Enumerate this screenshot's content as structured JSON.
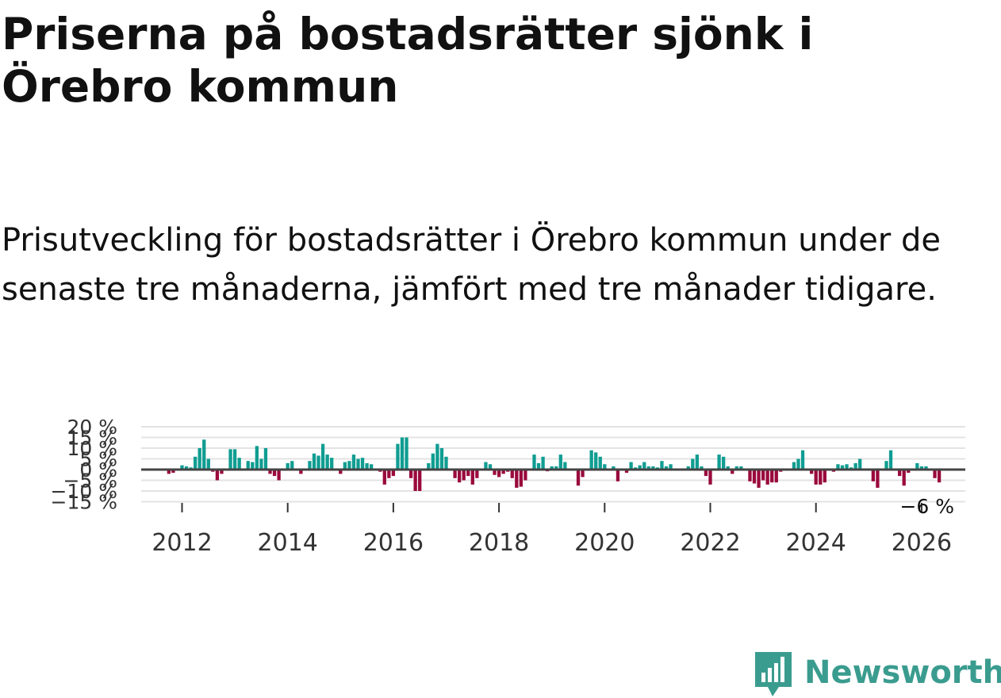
{
  "title": "Priserna på bostadsrätter sjönk i Örebro kommun",
  "subtitle": "Prisutveckling för bostadsrätter i Örebro kommun under de senaste tre månaderna, jämfört med tre månader tidigare.",
  "brand": {
    "name": "Newsworthy",
    "color": "#3a9c8f"
  },
  "colors": {
    "positive": "#109d92",
    "negative": "#9a0a3c",
    "grid": "#e3e3e3",
    "zero": "#444444"
  },
  "chart_data": {
    "type": "bar",
    "start": "2011-09",
    "frequency": "monthly",
    "unit": "%",
    "ylim": [
      -15,
      20
    ],
    "yticks": [
      {
        "v": 20,
        "label": "20 %"
      },
      {
        "v": 15,
        "label": "15 %"
      },
      {
        "v": 10,
        "label": "10 %"
      },
      {
        "v": 5,
        "label": "5 %"
      },
      {
        "v": 0,
        "label": "0 %"
      },
      {
        "v": -5,
        "label": "−5 %"
      },
      {
        "v": -10,
        "label": "−10 %"
      },
      {
        "v": -15,
        "label": "−15 %"
      }
    ],
    "xticks": [
      "2012",
      "2014",
      "2016",
      "2018",
      "2020",
      "2022",
      "2024",
      "2026"
    ],
    "last_value_label": "−6 %",
    "values": [
      0.4,
      -2.0,
      -1.5,
      0.3,
      2.0,
      1.5,
      1.0,
      6.0,
      10.0,
      14.0,
      5.0,
      -1.0,
      -5.0,
      -2.0,
      0.0,
      9.5,
      9.5,
      5.5,
      0.3,
      4.0,
      3.5,
      11.0,
      5.0,
      10.0,
      -2.0,
      -3.0,
      -5.0,
      0.5,
      3.0,
      4.0,
      0.5,
      -2.0,
      0.5,
      4.0,
      7.5,
      6.5,
      12.0,
      7.0,
      5.5,
      0.3,
      -2.0,
      3.5,
      4.0,
      7.0,
      5.0,
      5.5,
      3.0,
      2.5,
      0.3,
      -1.0,
      -7.0,
      -4.0,
      -3.0,
      12.0,
      15.0,
      15.0,
      -4.0,
      -10.0,
      -10.0,
      0.3,
      3.0,
      7.5,
      12.0,
      10.0,
      6.0,
      0.3,
      -4.0,
      -6.0,
      -5.0,
      -3.0,
      -7.0,
      -4.0,
      0.3,
      3.5,
      2.5,
      -2.5,
      -3.5,
      -2.0,
      -1.0,
      -4.0,
      -8.5,
      -8.0,
      -5.0,
      0.3,
      7.0,
      3.0,
      6.0,
      -0.8,
      1.5,
      1.5,
      7.0,
      3.5,
      0.3,
      0.2,
      -7.5,
      -3.5,
      0.3,
      9.0,
      8.0,
      6.0,
      2.5,
      0.5,
      1.5,
      -5.5,
      0.5,
      -1.5,
      3.5,
      1.0,
      2.0,
      3.5,
      1.5,
      1.5,
      1.0,
      4.0,
      1.5,
      2.5,
      0.5,
      0.5,
      0.3,
      1.5,
      5.0,
      7.0,
      1.5,
      -3.0,
      -7.0,
      0.3,
      7.0,
      6.0,
      1.5,
      -2.0,
      1.5,
      1.5,
      0.5,
      -5.5,
      -6.5,
      -8.5,
      -5.0,
      -7.0,
      -6.0,
      -6.0,
      -1.0,
      -0.5,
      0.3,
      3.5,
      5.0,
      9.0,
      0.3,
      -2.0,
      -7.0,
      -7.0,
      -6.0,
      -0.5,
      -1.0,
      2.5,
      2.0,
      2.5,
      1.0,
      3.0,
      5.0,
      0.5,
      0.3,
      -5.5,
      -8.5,
      0.3,
      4.0,
      9.0,
      0.3,
      -3.0,
      -7.5,
      -1.5,
      0.3,
      3.0,
      1.5,
      1.5,
      0.3,
      -4.0,
      -6.0
    ]
  }
}
